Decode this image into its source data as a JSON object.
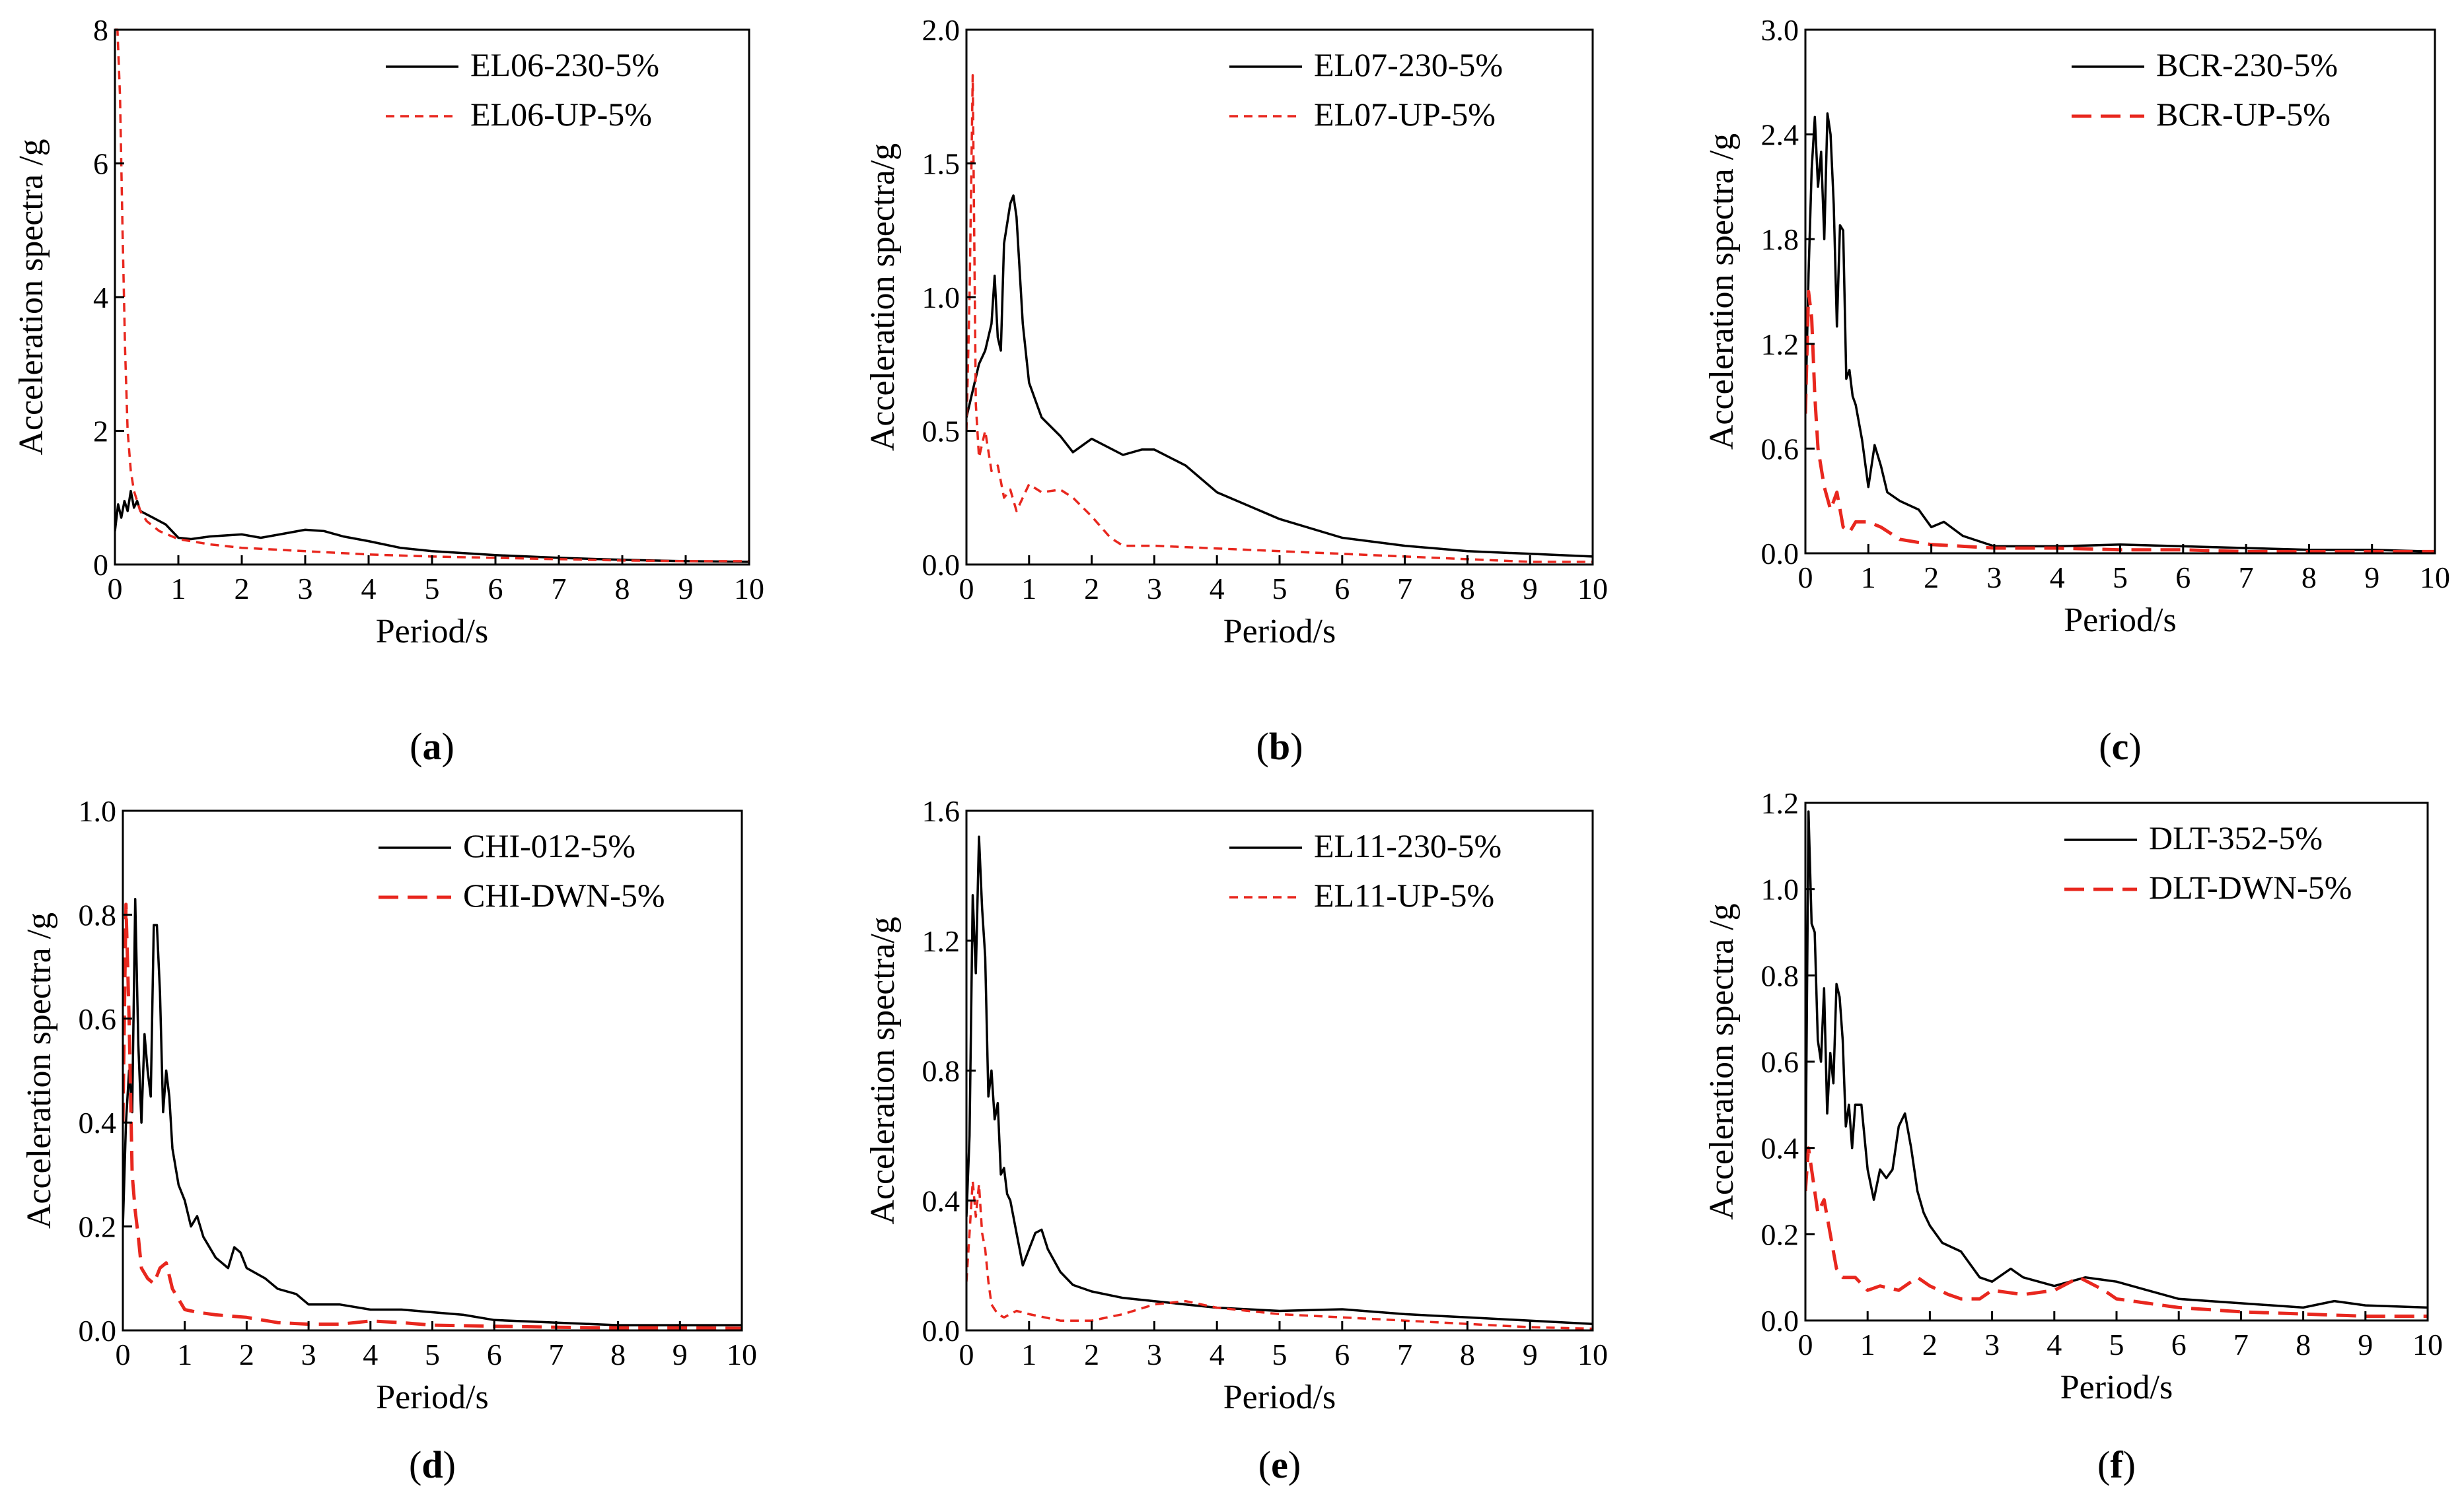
{
  "chart_data": [
    {
      "panel": "a",
      "caption_letter": "a",
      "type": "line",
      "xlabel": "Period/s",
      "ylabel": "Acceleration spectra /g",
      "xlim": [
        0,
        10
      ],
      "ylim": [
        0,
        8
      ],
      "xticks": [
        "0",
        "1",
        "2",
        "3",
        "4",
        "5",
        "6",
        "7",
        "8",
        "9",
        "10"
      ],
      "yticks": [
        "0",
        "2",
        "4",
        "6",
        "8"
      ],
      "legend_position": "top-right",
      "series": [
        {
          "name": "EL06-230-5%",
          "color": "#000000",
          "dash": "solid",
          "x": [
            0,
            0.05,
            0.1,
            0.15,
            0.2,
            0.25,
            0.3,
            0.35,
            0.4,
            0.5,
            0.6,
            0.8,
            1.0,
            1.2,
            1.5,
            2.0,
            2.3,
            2.6,
            3.0,
            3.3,
            3.6,
            4.0,
            4.5,
            5.0,
            5.5,
            6.0,
            7.0,
            8.0,
            9.0,
            10.0
          ],
          "y": [
            0.5,
            0.9,
            0.7,
            0.95,
            0.8,
            1.1,
            0.85,
            0.95,
            0.8,
            0.75,
            0.7,
            0.6,
            0.4,
            0.38,
            0.42,
            0.45,
            0.4,
            0.45,
            0.52,
            0.5,
            0.42,
            0.35,
            0.25,
            0.2,
            0.17,
            0.14,
            0.1,
            0.07,
            0.05,
            0.04
          ]
        },
        {
          "name": "EL06-UP-5%",
          "color": "#e8271e",
          "dash": "short",
          "x": [
            0,
            0.04,
            0.08,
            0.12,
            0.16,
            0.2,
            0.25,
            0.3,
            0.4,
            0.5,
            0.7,
            1.0,
            1.5,
            2.0,
            3.0,
            4.0,
            5.0,
            6.0,
            7.0,
            8.0,
            9.0,
            10.0
          ],
          "y": [
            8.0,
            8.0,
            7.0,
            5.0,
            3.2,
            2.0,
            1.4,
            1.1,
            0.8,
            0.65,
            0.5,
            0.38,
            0.3,
            0.25,
            0.2,
            0.15,
            0.12,
            0.1,
            0.08,
            0.06,
            0.05,
            0.05
          ]
        }
      ]
    },
    {
      "panel": "b",
      "caption_letter": "b",
      "type": "line",
      "xlabel": "Period/s",
      "ylabel": "Acceleration spectra/g",
      "xlim": [
        0,
        10
      ],
      "ylim": [
        0,
        2
      ],
      "xticks": [
        "0",
        "1",
        "2",
        "3",
        "4",
        "5",
        "6",
        "7",
        "8",
        "9",
        "10"
      ],
      "yticks": [
        "0.0",
        "0.5",
        "1.0",
        "1.5",
        "2.0"
      ],
      "legend_position": "top-right",
      "series": [
        {
          "name": "EL07-230-5%",
          "color": "#000000",
          "dash": "solid",
          "x": [
            0,
            0.1,
            0.2,
            0.3,
            0.4,
            0.45,
            0.5,
            0.55,
            0.6,
            0.7,
            0.75,
            0.8,
            0.9,
            1.0,
            1.2,
            1.5,
            1.7,
            2.0,
            2.5,
            2.8,
            3.0,
            3.5,
            4.0,
            5.0,
            6.0,
            7.0,
            8.0,
            9.0,
            10.0
          ],
          "y": [
            0.55,
            0.65,
            0.75,
            0.8,
            0.9,
            1.08,
            0.85,
            0.8,
            1.2,
            1.35,
            1.38,
            1.3,
            0.9,
            0.68,
            0.55,
            0.48,
            0.42,
            0.47,
            0.41,
            0.43,
            0.43,
            0.37,
            0.27,
            0.17,
            0.1,
            0.07,
            0.05,
            0.04,
            0.03
          ]
        },
        {
          "name": "EL07-UP-5%",
          "color": "#e8271e",
          "dash": "short",
          "x": [
            0,
            0.05,
            0.1,
            0.15,
            0.2,
            0.25,
            0.3,
            0.4,
            0.5,
            0.6,
            0.7,
            0.8,
            1.0,
            1.2,
            1.5,
            1.7,
            2.0,
            2.3,
            2.5,
            3.0,
            4.0,
            5.0,
            6.0,
            7.0,
            8.0,
            9.0,
            10.0
          ],
          "y": [
            0.5,
            1.0,
            1.83,
            0.6,
            0.4,
            0.45,
            0.5,
            0.35,
            0.37,
            0.25,
            0.28,
            0.2,
            0.3,
            0.27,
            0.28,
            0.25,
            0.18,
            0.1,
            0.07,
            0.07,
            0.06,
            0.05,
            0.04,
            0.03,
            0.02,
            0.01,
            0.01
          ]
        }
      ]
    },
    {
      "panel": "c",
      "caption_letter": "c",
      "type": "line",
      "xlabel": "Period/s",
      "ylabel": "Acceleration spectra /g",
      "xlim": [
        0,
        10
      ],
      "ylim": [
        0,
        3
      ],
      "xticks": [
        "0",
        "1",
        "2",
        "3",
        "4",
        "5",
        "6",
        "7",
        "8",
        "9",
        "10"
      ],
      "yticks": [
        "0.0",
        "0.6",
        "1.2",
        "1.8",
        "2.4",
        "3.0"
      ],
      "legend_position": "top-right",
      "series": [
        {
          "name": "BCR-230-5%",
          "color": "#000000",
          "dash": "solid",
          "x": [
            0,
            0.05,
            0.1,
            0.15,
            0.2,
            0.25,
            0.3,
            0.35,
            0.4,
            0.45,
            0.5,
            0.55,
            0.6,
            0.65,
            0.7,
            0.75,
            0.8,
            0.9,
            1.0,
            1.1,
            1.2,
            1.3,
            1.5,
            1.8,
            2.0,
            2.2,
            2.5,
            3.0,
            3.5,
            4.0,
            5.0,
            6.0,
            7.0,
            8.0,
            9.0,
            10.0
          ],
          "y": [
            0.8,
            1.6,
            2.2,
            2.5,
            2.1,
            2.3,
            1.8,
            2.52,
            2.4,
            2.0,
            1.3,
            1.88,
            1.85,
            1.0,
            1.05,
            0.9,
            0.85,
            0.65,
            0.38,
            0.62,
            0.5,
            0.35,
            0.3,
            0.25,
            0.15,
            0.18,
            0.1,
            0.04,
            0.04,
            0.04,
            0.05,
            0.04,
            0.03,
            0.02,
            0.02,
            0.01
          ]
        },
        {
          "name": "BCR-UP-5%",
          "color": "#e8271e",
          "dash": "long",
          "x": [
            0,
            0.05,
            0.1,
            0.15,
            0.2,
            0.3,
            0.4,
            0.5,
            0.6,
            0.7,
            0.8,
            1.0,
            1.2,
            1.5,
            2.0,
            2.5,
            3.0,
            4.0,
            5.0,
            6.0,
            7.0,
            8.0,
            9.0,
            10.0
          ],
          "y": [
            0.8,
            1.5,
            1.35,
            0.9,
            0.6,
            0.38,
            0.25,
            0.35,
            0.15,
            0.12,
            0.18,
            0.18,
            0.15,
            0.08,
            0.05,
            0.04,
            0.03,
            0.03,
            0.02,
            0.02,
            0.01,
            0.01,
            0.01,
            0.01
          ]
        }
      ]
    },
    {
      "panel": "d",
      "caption_letter": "d",
      "type": "line",
      "xlabel": "Period/s",
      "ylabel": "Acceleration spectra /g",
      "xlim": [
        0,
        10
      ],
      "ylim": [
        0,
        1
      ],
      "xticks": [
        "0",
        "1",
        "2",
        "3",
        "4",
        "5",
        "6",
        "7",
        "8",
        "9",
        "10"
      ],
      "yticks": [
        "0.0",
        "0.2",
        "0.4",
        "0.6",
        "0.8",
        "1.0"
      ],
      "legend_position": "top-right",
      "series": [
        {
          "name": "CHI-012-5%",
          "color": "#000000",
          "dash": "solid",
          "x": [
            0,
            0.05,
            0.1,
            0.15,
            0.2,
            0.25,
            0.3,
            0.35,
            0.4,
            0.45,
            0.5,
            0.55,
            0.6,
            0.65,
            0.7,
            0.75,
            0.8,
            0.9,
            1.0,
            1.1,
            1.2,
            1.3,
            1.5,
            1.7,
            1.8,
            1.9,
            2.0,
            2.3,
            2.5,
            2.8,
            3.0,
            3.5,
            4.0,
            4.5,
            5.0,
            5.5,
            6.0,
            7.0,
            8.0,
            9.0,
            10.0
          ],
          "y": [
            0.2,
            0.4,
            0.5,
            0.42,
            0.83,
            0.55,
            0.4,
            0.57,
            0.5,
            0.45,
            0.78,
            0.78,
            0.65,
            0.42,
            0.5,
            0.45,
            0.35,
            0.28,
            0.25,
            0.2,
            0.22,
            0.18,
            0.14,
            0.12,
            0.16,
            0.15,
            0.12,
            0.1,
            0.08,
            0.07,
            0.05,
            0.05,
            0.04,
            0.04,
            0.035,
            0.03,
            0.02,
            0.015,
            0.01,
            0.01,
            0.01
          ]
        },
        {
          "name": "CHI-DWN-5%",
          "color": "#e8271e",
          "dash": "long",
          "x": [
            0,
            0.05,
            0.1,
            0.15,
            0.2,
            0.25,
            0.3,
            0.4,
            0.5,
            0.6,
            0.7,
            0.8,
            1.0,
            1.2,
            1.5,
            2.0,
            2.5,
            3.0,
            3.5,
            4.0,
            4.5,
            5.0,
            6.0,
            7.0,
            8.0,
            9.0,
            10.0
          ],
          "y": [
            0.4,
            0.82,
            0.6,
            0.3,
            0.23,
            0.18,
            0.12,
            0.1,
            0.09,
            0.12,
            0.13,
            0.08,
            0.04,
            0.035,
            0.03,
            0.025,
            0.015,
            0.012,
            0.012,
            0.018,
            0.015,
            0.01,
            0.008,
            0.006,
            0.005,
            0.005,
            0.004
          ]
        }
      ]
    },
    {
      "panel": "e",
      "caption_letter": "e",
      "type": "line",
      "xlabel": "Period/s",
      "ylabel": "Acceleration spectra/g",
      "xlim": [
        0,
        10
      ],
      "ylim": [
        0,
        1.6
      ],
      "xticks": [
        "0",
        "1",
        "2",
        "3",
        "4",
        "5",
        "6",
        "7",
        "8",
        "9",
        "10"
      ],
      "yticks": [
        "0.0",
        "0.4",
        "0.8",
        "1.2",
        "1.6"
      ],
      "legend_position": "top-right",
      "series": [
        {
          "name": "EL11-230-5%",
          "color": "#000000",
          "dash": "solid",
          "x": [
            0,
            0.05,
            0.1,
            0.15,
            0.2,
            0.25,
            0.3,
            0.35,
            0.4,
            0.45,
            0.5,
            0.55,
            0.6,
            0.65,
            0.7,
            0.8,
            0.9,
            1.0,
            1.1,
            1.2,
            1.3,
            1.5,
            1.7,
            2.0,
            2.5,
            3.0,
            3.5,
            4.0,
            5.0,
            6.0,
            7.0,
            8.0,
            9.0,
            10.0
          ],
          "y": [
            0.35,
            0.6,
            1.34,
            1.1,
            1.52,
            1.3,
            1.15,
            0.72,
            0.8,
            0.65,
            0.7,
            0.48,
            0.5,
            0.42,
            0.4,
            0.3,
            0.2,
            0.25,
            0.3,
            0.31,
            0.25,
            0.18,
            0.14,
            0.12,
            0.1,
            0.09,
            0.08,
            0.07,
            0.06,
            0.065,
            0.05,
            0.04,
            0.03,
            0.02
          ]
        },
        {
          "name": "EL11-UP-5%",
          "color": "#e8271e",
          "dash": "short",
          "x": [
            0,
            0.05,
            0.1,
            0.15,
            0.2,
            0.25,
            0.3,
            0.35,
            0.4,
            0.5,
            0.6,
            0.8,
            1.0,
            1.5,
            2.0,
            2.5,
            3.0,
            3.5,
            4.0,
            5.0,
            6.0,
            7.0,
            8.0,
            9.0,
            10.0
          ],
          "y": [
            0.15,
            0.3,
            0.46,
            0.35,
            0.45,
            0.3,
            0.25,
            0.15,
            0.08,
            0.05,
            0.04,
            0.06,
            0.05,
            0.03,
            0.03,
            0.05,
            0.08,
            0.09,
            0.07,
            0.05,
            0.04,
            0.03,
            0.02,
            0.01,
            0.005
          ]
        }
      ]
    },
    {
      "panel": "f",
      "caption_letter": "f",
      "type": "line",
      "xlabel": "Period/s",
      "ylabel": "Acceleration spectra /g",
      "xlim": [
        0,
        10
      ],
      "ylim": [
        0,
        1.2
      ],
      "xticks": [
        "0",
        "1",
        "2",
        "3",
        "4",
        "5",
        "6",
        "7",
        "8",
        "9",
        "10"
      ],
      "yticks": [
        "0.0",
        "0.2",
        "0.4",
        "0.6",
        "0.8",
        "1.0",
        "1.2"
      ],
      "legend_position": "top-right",
      "series": [
        {
          "name": "DLT-352-5%",
          "color": "#000000",
          "dash": "solid",
          "x": [
            0,
            0.05,
            0.1,
            0.15,
            0.2,
            0.25,
            0.3,
            0.35,
            0.4,
            0.45,
            0.5,
            0.55,
            0.6,
            0.65,
            0.7,
            0.75,
            0.8,
            0.9,
            1.0,
            1.1,
            1.2,
            1.3,
            1.4,
            1.5,
            1.6,
            1.7,
            1.8,
            1.9,
            2.0,
            2.2,
            2.5,
            2.8,
            3.0,
            3.3,
            3.5,
            4.0,
            4.5,
            5.0,
            5.5,
            6.0,
            6.5,
            7.0,
            8.0,
            8.5,
            9.0,
            10.0
          ],
          "y": [
            0.3,
            1.18,
            0.92,
            0.9,
            0.65,
            0.6,
            0.77,
            0.48,
            0.62,
            0.55,
            0.78,
            0.75,
            0.65,
            0.45,
            0.5,
            0.4,
            0.5,
            0.5,
            0.35,
            0.28,
            0.35,
            0.33,
            0.35,
            0.45,
            0.48,
            0.4,
            0.3,
            0.25,
            0.22,
            0.18,
            0.16,
            0.1,
            0.09,
            0.12,
            0.1,
            0.08,
            0.1,
            0.09,
            0.07,
            0.05,
            0.045,
            0.04,
            0.03,
            0.045,
            0.035,
            0.03
          ]
        },
        {
          "name": "DLT-DWN-5%",
          "color": "#e8271e",
          "dash": "long",
          "x": [
            0,
            0.05,
            0.1,
            0.15,
            0.2,
            0.3,
            0.4,
            0.5,
            0.6,
            0.8,
            1.0,
            1.2,
            1.5,
            1.8,
            2.0,
            2.3,
            2.5,
            2.8,
            3.0,
            3.5,
            4.0,
            4.4,
            4.8,
            5.0,
            5.5,
            6.0,
            7.0,
            8.0,
            9.0,
            10.0
          ],
          "y": [
            0.3,
            0.4,
            0.35,
            0.3,
            0.25,
            0.28,
            0.2,
            0.12,
            0.1,
            0.1,
            0.07,
            0.08,
            0.07,
            0.1,
            0.08,
            0.06,
            0.05,
            0.05,
            0.07,
            0.06,
            0.07,
            0.1,
            0.07,
            0.05,
            0.04,
            0.03,
            0.02,
            0.015,
            0.01,
            0.01
          ]
        }
      ]
    }
  ]
}
